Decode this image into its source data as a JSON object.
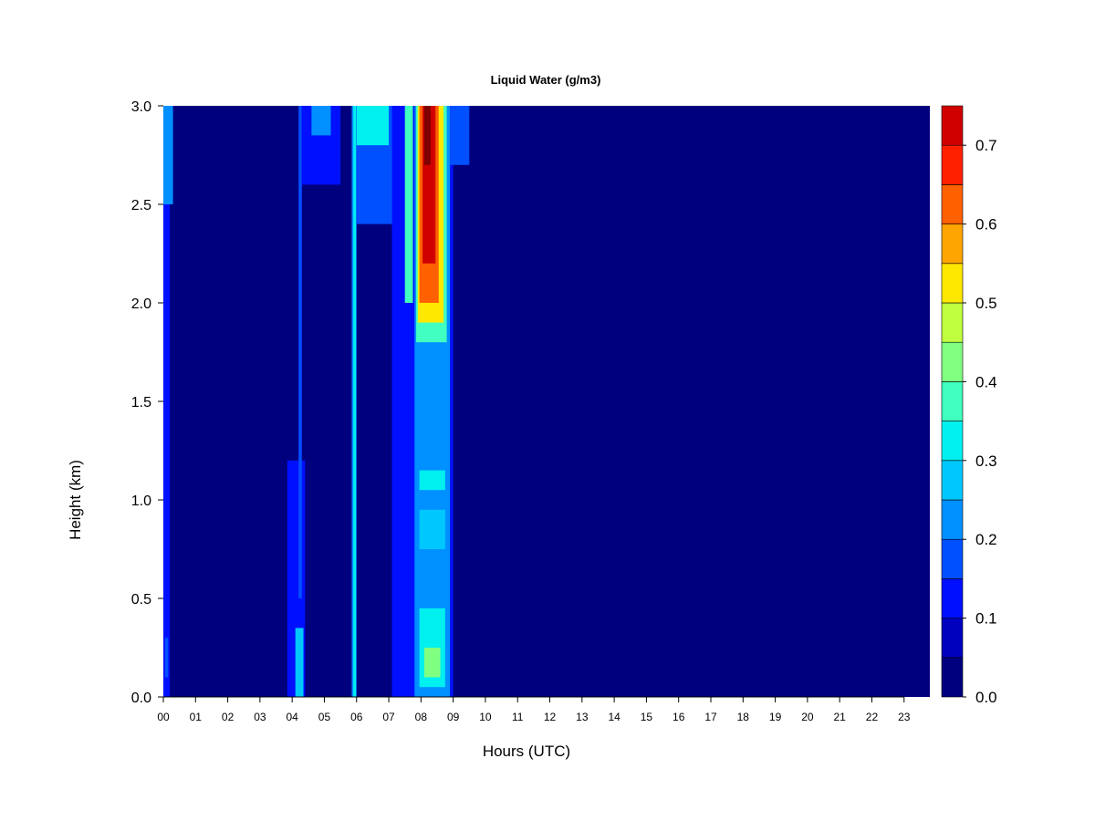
{
  "chart_data": {
    "type": "heatmap",
    "title": "Liquid Water (g/m3)",
    "xlabel": "Hours (UTC)",
    "ylabel": "Height (km)",
    "x_ticks": [
      "00",
      "01",
      "02",
      "03",
      "04",
      "05",
      "06",
      "07",
      "08",
      "09",
      "10",
      "11",
      "12",
      "13",
      "14",
      "15",
      "16",
      "17",
      "18",
      "19",
      "20",
      "21",
      "22",
      "23"
    ],
    "y_ticks": [
      "0.0",
      "0.5",
      "1.0",
      "1.5",
      "2.0",
      "2.5",
      "3.0"
    ],
    "xlim": [
      0,
      23.8
    ],
    "ylim": [
      0,
      3
    ],
    "colorbar": {
      "levels": [
        0,
        0.05,
        0.1,
        0.15,
        0.2,
        0.25,
        0.3,
        0.35,
        0.4,
        0.45,
        0.5,
        0.55,
        0.6,
        0.65,
        0.7,
        0.75
      ],
      "tick_labels": [
        "0.0",
        "0.1",
        "0.2",
        "0.3",
        "0.4",
        "0.5",
        "0.6",
        "0.7"
      ],
      "tick_values": [
        0,
        0.1,
        0.2,
        0.3,
        0.4,
        0.5,
        0.6,
        0.7
      ],
      "colors": [
        "#00007F",
        "#0000BF",
        "#0010FF",
        "#0050FF",
        "#0090FF",
        "#00C8FF",
        "#00F0F0",
        "#40FFC0",
        "#80FF80",
        "#C0FF40",
        "#FFE800",
        "#FFA500",
        "#FF6000",
        "#FF2000",
        "#D00000",
        "#800000"
      ]
    },
    "background_value": 0.0,
    "features": [
      {
        "hour_start": 0.0,
        "hour_end": 0.2,
        "height_bottom": 0.0,
        "height_top": 3.0,
        "value": 0.1
      },
      {
        "hour_start": 0.0,
        "hour_end": 0.3,
        "height_bottom": 2.5,
        "height_top": 3.0,
        "value": 0.2
      },
      {
        "hour_start": 0.05,
        "hour_end": 0.15,
        "height_bottom": 0.1,
        "height_top": 0.3,
        "value": 0.15
      },
      {
        "hour_start": 3.85,
        "hour_end": 4.4,
        "height_bottom": 0.0,
        "height_top": 1.2,
        "value": 0.1
      },
      {
        "hour_start": 4.1,
        "hour_end": 4.35,
        "height_bottom": 0.0,
        "height_top": 0.35,
        "value": 0.25
      },
      {
        "hour_start": 4.2,
        "hour_end": 4.3,
        "height_bottom": 0.5,
        "height_top": 3.0,
        "value": 0.15
      },
      {
        "hour_start": 4.3,
        "hour_end": 5.5,
        "height_bottom": 2.6,
        "height_top": 3.0,
        "value": 0.12
      },
      {
        "hour_start": 4.6,
        "hour_end": 5.2,
        "height_bottom": 2.85,
        "height_top": 3.0,
        "value": 0.2
      },
      {
        "hour_start": 5.85,
        "hour_end": 6.0,
        "height_bottom": 0.0,
        "height_top": 3.0,
        "value": 0.2
      },
      {
        "hour_start": 5.9,
        "hour_end": 5.98,
        "height_bottom": 0.0,
        "height_top": 3.0,
        "value": 0.3
      },
      {
        "hour_start": 6.0,
        "hour_end": 7.2,
        "height_bottom": 2.4,
        "height_top": 3.0,
        "value": 0.15
      },
      {
        "hour_start": 6.0,
        "hour_end": 7.0,
        "height_bottom": 2.8,
        "height_top": 3.0,
        "value": 0.3
      },
      {
        "hour_start": 7.1,
        "hour_end": 9.0,
        "height_bottom": 0.0,
        "height_top": 3.0,
        "value": 0.1
      },
      {
        "hour_start": 7.5,
        "hour_end": 7.75,
        "height_bottom": 2.0,
        "height_top": 3.0,
        "value": 0.35
      },
      {
        "hour_start": 7.8,
        "hour_end": 8.9,
        "height_bottom": 0.0,
        "height_top": 3.0,
        "value": 0.2
      },
      {
        "hour_start": 7.85,
        "hour_end": 8.8,
        "height_bottom": 1.8,
        "height_top": 3.0,
        "value": 0.35
      },
      {
        "hour_start": 7.9,
        "hour_end": 8.7,
        "height_bottom": 1.9,
        "height_top": 3.0,
        "value": 0.5
      },
      {
        "hour_start": 7.95,
        "hour_end": 8.55,
        "height_bottom": 2.0,
        "height_top": 3.0,
        "value": 0.6
      },
      {
        "hour_start": 8.05,
        "hour_end": 8.45,
        "height_bottom": 2.2,
        "height_top": 3.0,
        "value": 0.7
      },
      {
        "hour_start": 8.1,
        "hour_end": 8.3,
        "height_bottom": 2.7,
        "height_top": 3.0,
        "value": 0.75
      },
      {
        "hour_start": 7.95,
        "hour_end": 8.75,
        "height_bottom": 0.05,
        "height_top": 0.45,
        "value": 0.3
      },
      {
        "hour_start": 8.1,
        "hour_end": 8.6,
        "height_bottom": 0.1,
        "height_top": 0.25,
        "value": 0.4
      },
      {
        "hour_start": 7.95,
        "hour_end": 8.75,
        "height_bottom": 1.05,
        "height_top": 1.15,
        "value": 0.3
      },
      {
        "hour_start": 7.95,
        "hour_end": 8.75,
        "height_bottom": 0.75,
        "height_top": 0.95,
        "value": 0.28
      },
      {
        "hour_start": 8.9,
        "hour_end": 9.5,
        "height_bottom": 2.7,
        "height_top": 3.0,
        "value": 0.15
      }
    ]
  }
}
